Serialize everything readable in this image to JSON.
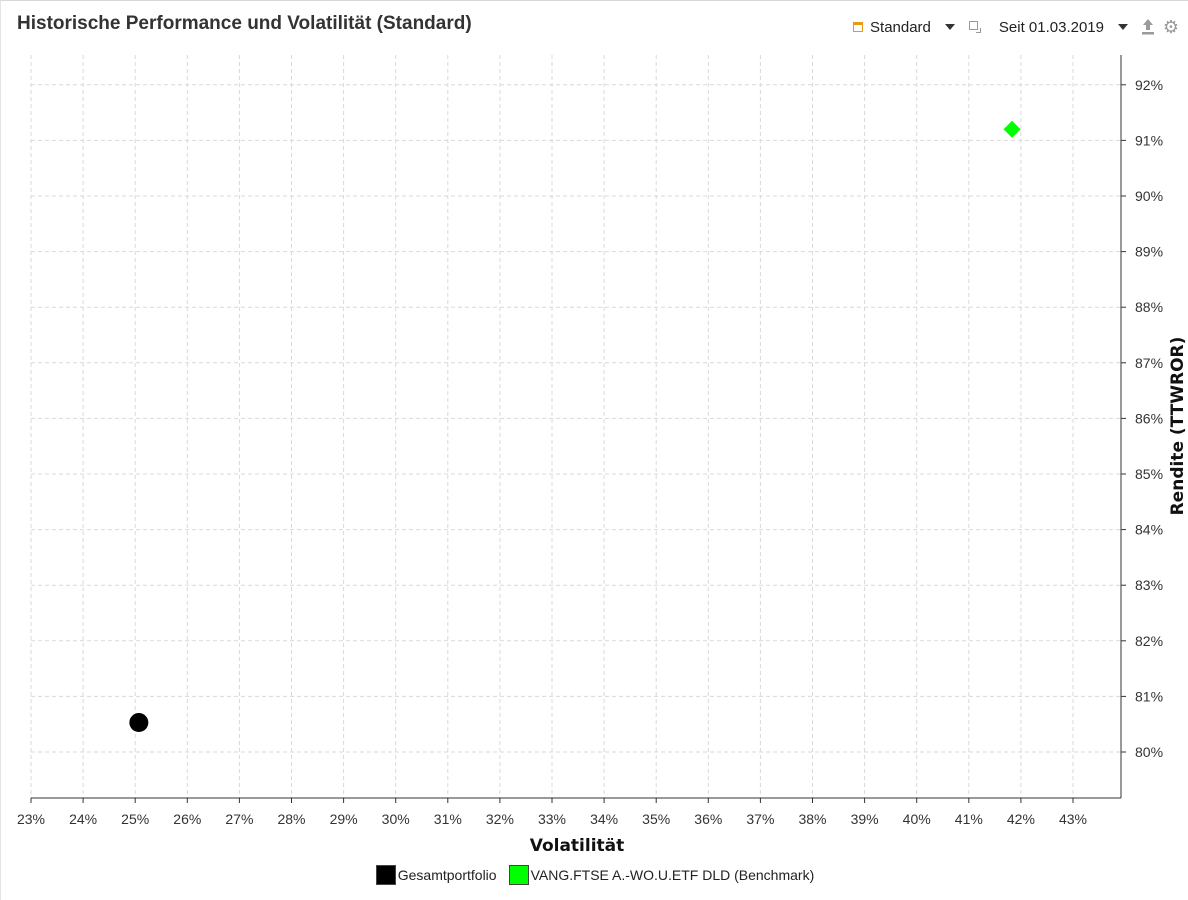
{
  "header": {
    "title": "Historische Performance und Volatilität (Standard)",
    "view_label": "Standard",
    "period_label": "Seit 01.03.2019"
  },
  "icons": {
    "view": "calendar-icon",
    "period": "clone-icon",
    "export": "export-icon",
    "settings": "gear-icon"
  },
  "colors": {
    "accent": "#e89a17",
    "icon_gray": "#9a9a9a"
  },
  "chart_data": {
    "type": "scatter",
    "xlabel": "Volatilität",
    "ylabel": "Rendite (TTWROR)",
    "xlim": [
      23,
      44
    ],
    "ylim": [
      79.2,
      92.6
    ],
    "x_ticks": [
      23,
      24,
      25,
      26,
      27,
      28,
      29,
      30,
      31,
      32,
      33,
      34,
      35,
      36,
      37,
      38,
      39,
      40,
      41,
      42,
      43
    ],
    "y_ticks": [
      80,
      81,
      82,
      83,
      84,
      85,
      86,
      87,
      88,
      89,
      90,
      91,
      92
    ],
    "tick_suffix": "%",
    "grid": true,
    "y_axis_position": "right",
    "legend_position": "bottom",
    "series": [
      {
        "name": "Gesamtportfolio",
        "color": "#000000",
        "marker": "circle",
        "points": [
          {
            "x": 25.07,
            "y": 80.53
          }
        ]
      },
      {
        "name": "VANG.FTSE A.-WO.U.ETF DLD (Benchmark)",
        "color": "#00ff00",
        "marker": "diamond",
        "points": [
          {
            "x": 41.83,
            "y": 91.2
          }
        ]
      }
    ]
  }
}
